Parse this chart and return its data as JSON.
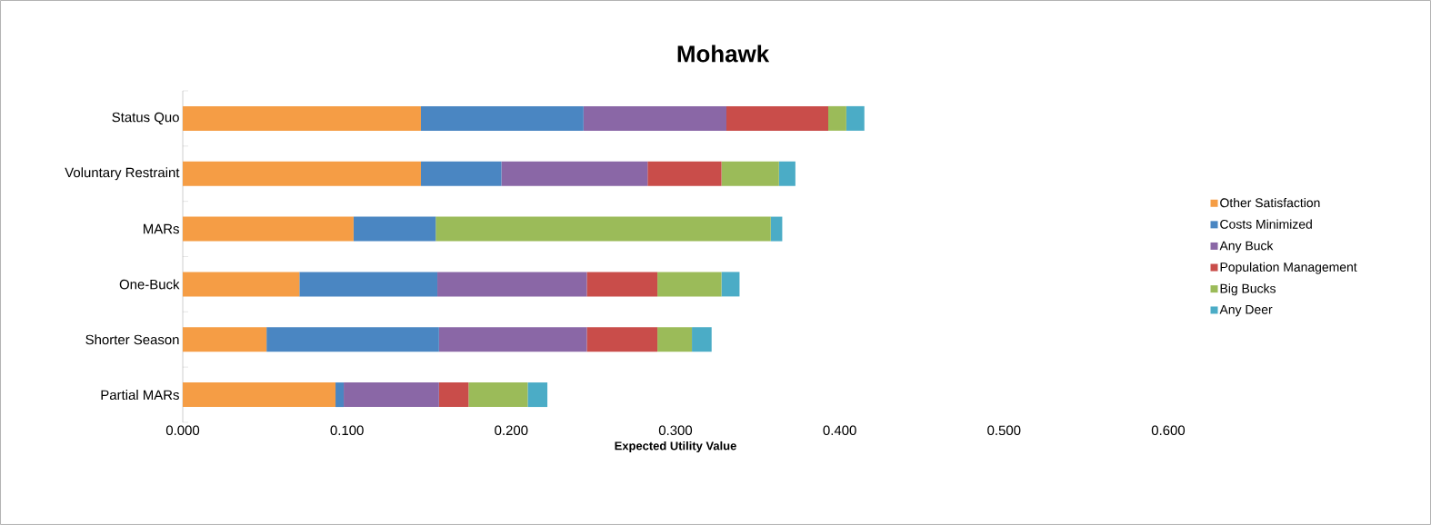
{
  "chart_data": {
    "type": "bar",
    "orientation": "horizontal",
    "stacked": true,
    "title": "Mohawk",
    "xlabel": "Expected Utility Value",
    "categories": [
      "Status Quo",
      "Voluntary Restraint",
      "MARs",
      "One-Buck",
      "Shorter Season",
      "Partial MARs"
    ],
    "series": [
      {
        "name": "Other Satisfaction",
        "color": "#f59d45",
        "values": [
          0.145,
          0.145,
          0.104,
          0.071,
          0.051,
          0.093
        ]
      },
      {
        "name": "Costs Minimized",
        "color": "#4a86c2",
        "values": [
          0.099,
          0.049,
          0.05,
          0.084,
          0.105,
          0.005
        ]
      },
      {
        "name": "Any Buck",
        "color": "#8a67a6",
        "values": [
          0.087,
          0.089,
          0,
          0.091,
          0.09,
          0.058
        ]
      },
      {
        "name": "Population Management",
        "color": "#c94d4a",
        "values": [
          0.062,
          0.045,
          0,
          0.043,
          0.043,
          0.018
        ]
      },
      {
        "name": "Big Bucks",
        "color": "#9bbb59",
        "values": [
          0.011,
          0.035,
          0.204,
          0.039,
          0.021,
          0.036
        ]
      },
      {
        "name": "Any Deer",
        "color": "#4bacc6",
        "values": [
          0.011,
          0.01,
          0.007,
          0.011,
          0.012,
          0.012
        ]
      }
    ],
    "xlim": [
      0,
      0.6
    ],
    "xticks": [
      {
        "value": 0,
        "label": "0.000"
      },
      {
        "value": 0.1,
        "label": "0.100"
      },
      {
        "value": 0.2,
        "label": "0.200"
      },
      {
        "value": 0.3,
        "label": "0.300"
      },
      {
        "value": 0.4,
        "label": "0.400"
      },
      {
        "value": 0.5,
        "label": "0.500"
      },
      {
        "value": 0.6,
        "label": "0.600"
      }
    ],
    "grid": false,
    "legend": "right"
  }
}
